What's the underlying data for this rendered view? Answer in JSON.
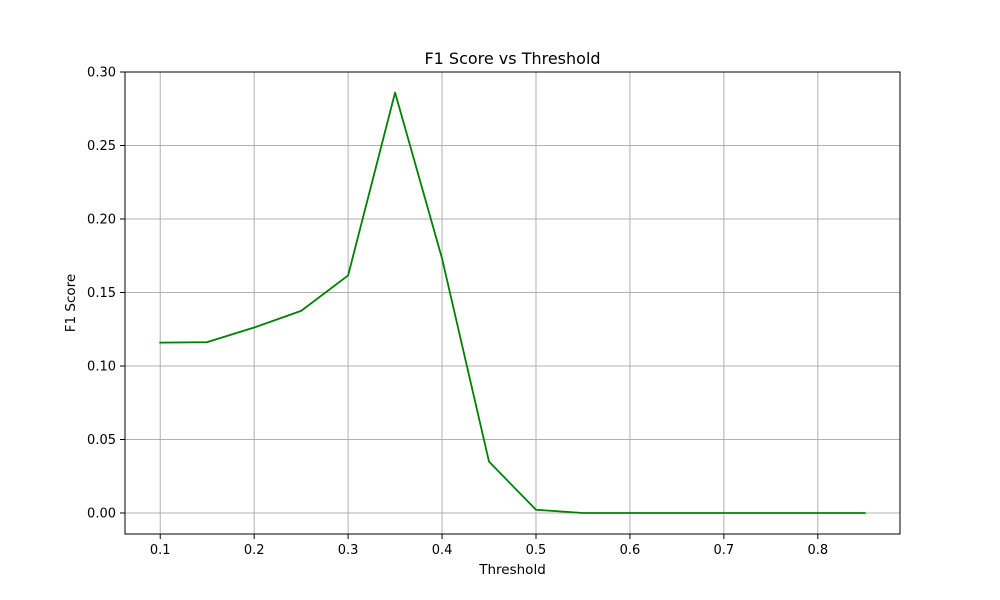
{
  "chart_data": {
    "type": "line",
    "title": "F1 Score vs Threshold",
    "xlabel": "Threshold",
    "ylabel": "F1 Score",
    "xlim": [
      0.0625,
      0.8875
    ],
    "ylim": [
      -0.0143,
      0.3
    ],
    "xticks": [
      "0.1",
      "0.2",
      "0.3",
      "0.4",
      "0.5",
      "0.6",
      "0.7",
      "0.8"
    ],
    "yticks": [
      "0.00",
      "0.05",
      "0.10",
      "0.15",
      "0.20",
      "0.25",
      "0.30"
    ],
    "grid": true,
    "series": [
      {
        "color": "#008000",
        "x": [
          0.1,
          0.15,
          0.2,
          0.25,
          0.3,
          0.35,
          0.4,
          0.45,
          0.5,
          0.55,
          0.6,
          0.65,
          0.7,
          0.75,
          0.8,
          0.85
        ],
        "values": [
          0.1159,
          0.1162,
          0.1262,
          0.1375,
          0.1616,
          0.286,
          0.1731,
          0.0349,
          0.0022,
          0.0,
          0.0,
          0.0,
          0.0,
          0.0,
          0.0,
          0.0
        ]
      }
    ]
  }
}
